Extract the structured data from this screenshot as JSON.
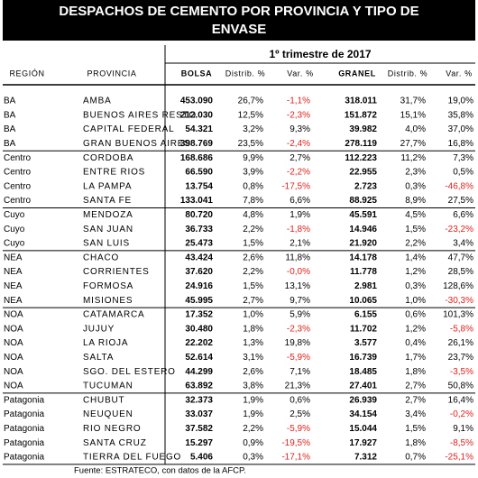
{
  "header": {
    "title_lines": [
      "DESPACHOS DE CEMENTO POR PROVINCIA Y TIPO DE",
      "ENVASE"
    ],
    "period": "1º trimestre de 2017"
  },
  "table": {
    "columns": [
      "REGIÓN",
      "PROVINCIA",
      "BOLSA",
      "Distrib. %",
      "Var. %",
      "GRANEL",
      "Distrib. %",
      "Var. %"
    ],
    "rows": [
      [
        "BA",
        "AMBA",
        "453.090",
        "26,7%",
        "-1,1%",
        "318.011",
        "31,7%",
        "19,0%"
      ],
      [
        "BA",
        "BUENOS AIRES RESTO",
        "212.030",
        "12,5%",
        "-2,3%",
        "151.872",
        "15,1%",
        "35,8%"
      ],
      [
        "BA",
        "CAPITAL FEDERAL",
        "54.321",
        "3,2%",
        "9,3%",
        "39.982",
        "4,0%",
        "37,0%"
      ],
      [
        "BA",
        "GRAN BUENOS AIRES",
        "398.769",
        "23,5%",
        "-2,4%",
        "278.119",
        "27,7%",
        "16,8%"
      ],
      [
        "Centro",
        "CORDOBA",
        "168.686",
        "9,9%",
        "2,7%",
        "112.223",
        "11,2%",
        "7,3%"
      ],
      [
        "Centro",
        "ENTRE RIOS",
        "66.590",
        "3,9%",
        "-2,2%",
        "22.955",
        "2,3%",
        "0,5%"
      ],
      [
        "Centro",
        "LA PAMPA",
        "13.754",
        "0,8%",
        "-17,5%",
        "2.723",
        "0,3%",
        "-46,8%"
      ],
      [
        "Centro",
        "SANTA FE",
        "133.041",
        "7,8%",
        "6,6%",
        "88.925",
        "8,9%",
        "27,5%"
      ],
      [
        "Cuyo",
        "MENDOZA",
        "80.720",
        "4,8%",
        "1,9%",
        "45.591",
        "4,5%",
        "6,6%"
      ],
      [
        "Cuyo",
        "SAN JUAN",
        "36.733",
        "2,2%",
        "-1,8%",
        "14.946",
        "1,5%",
        "-23,2%"
      ],
      [
        "Cuyo",
        "SAN LUIS",
        "25.473",
        "1,5%",
        "2,1%",
        "21.920",
        "2,2%",
        "3,4%"
      ],
      [
        "NEA",
        "CHACO",
        "43.424",
        "2,6%",
        "11,8%",
        "14.178",
        "1,4%",
        "47,7%"
      ],
      [
        "NEA",
        "CORRIENTES",
        "37.620",
        "2,2%",
        "-0,0%",
        "11.778",
        "1,2%",
        "28,5%"
      ],
      [
        "NEA",
        "FORMOSA",
        "24.916",
        "1,5%",
        "13,1%",
        "2.981",
        "0,3%",
        "128,6%"
      ],
      [
        "NEA",
        "MISIONES",
        "45.995",
        "2,7%",
        "9,7%",
        "10.065",
        "1,0%",
        "-30,3%"
      ],
      [
        "NOA",
        "CATAMARCA",
        "17.352",
        "1,0%",
        "5,9%",
        "6.155",
        "0,6%",
        "101,3%"
      ],
      [
        "NOA",
        "JUJUY",
        "30.480",
        "1,8%",
        "-2,3%",
        "11.702",
        "1,2%",
        "-5,8%"
      ],
      [
        "NOA",
        "LA RIOJA",
        "22.202",
        "1,3%",
        "19,8%",
        "3.577",
        "0,4%",
        "26,1%"
      ],
      [
        "NOA",
        "SALTA",
        "52.614",
        "3,1%",
        "-5,9%",
        "16.739",
        "1,7%",
        "23,7%"
      ],
      [
        "NOA",
        "SGO. DEL ESTERO",
        "44.299",
        "2,6%",
        "7,1%",
        "18.485",
        "1,8%",
        "-3,5%"
      ],
      [
        "NOA",
        "TUCUMAN",
        "63.892",
        "3,8%",
        "21,3%",
        "27.401",
        "2,7%",
        "50,8%"
      ],
      [
        "Patagonia",
        "CHUBUT",
        "32.373",
        "1,9%",
        "0,6%",
        "26.939",
        "2,7%",
        "16,4%"
      ],
      [
        "Patagonia",
        "NEUQUEN",
        "33.037",
        "1,9%",
        "2,5%",
        "34.154",
        "3,4%",
        "-0,2%"
      ],
      [
        "Patagonia",
        "RIO NEGRO",
        "37.582",
        "2,2%",
        "-5,9%",
        "15.044",
        "1,5%",
        "9,1%"
      ],
      [
        "Patagonia",
        "SANTA CRUZ",
        "15.297",
        "0,9%",
        "-19,5%",
        "17.927",
        "1,8%",
        "-8,5%"
      ],
      [
        "Patagonia",
        "TIERRA DEL FUEGO",
        "5.406",
        "0,3%",
        "-17,1%",
        "7.312",
        "0,7%",
        "-25,1%"
      ]
    ]
  },
  "footer": {
    "source": "Fuente: ESTRATECO, con datos de la AFCP."
  }
}
